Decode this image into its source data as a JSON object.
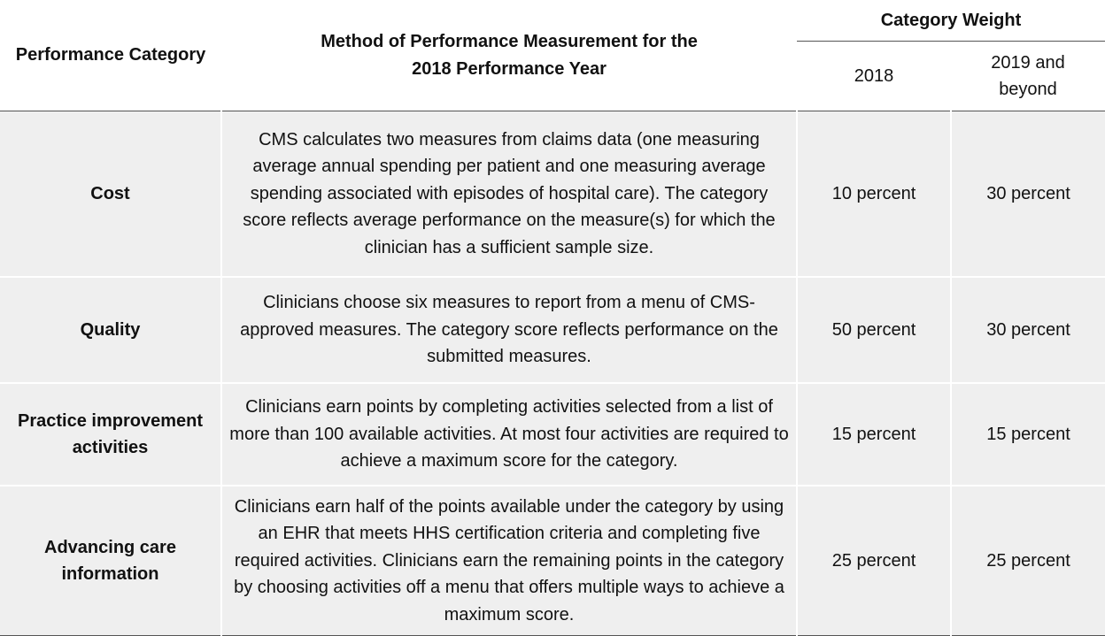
{
  "header": {
    "performance_category": "Performance Category",
    "method": "Method of Performance Measurement for the 2018 Performance Year",
    "category_weight": "Category Weight",
    "year_2018": "2018",
    "year_2019": "2019 and beyond"
  },
  "rows": [
    {
      "category": "Cost",
      "method": "CMS calculates two measures from claims data (one measuring average annual spending per patient and one measuring average spending associated with episodes of hospital care). The category score reflects average performance on the measure(s) for which the clinician has a sufficient sample size.",
      "w2018": "10 percent",
      "w2019": "30 percent"
    },
    {
      "category": "Quality",
      "method": "Clinicians choose six measures to report from a menu of CMS-approved measures. The category score reflects performance on the submitted measures.",
      "w2018": "50 percent",
      "w2019": "30 percent"
    },
    {
      "category": "Practice improvement activities",
      "method": "Clinicians earn points by completing activities selected from a list of more than 100 available activities. At most four activities are required to achieve a maximum score for the category.",
      "w2018": "15 percent",
      "w2019": "15 percent"
    },
    {
      "category": "Advancing care information",
      "method": "Clinicians earn half of the points available under the category by using an EHR that meets HHS certification criteria and completing five required activities. Clinicians earn the remaining points in the category by choosing activities off a menu that offers multiple ways to achieve a maximum score.",
      "w2018": "25 percent",
      "w2019": "25 percent"
    }
  ]
}
